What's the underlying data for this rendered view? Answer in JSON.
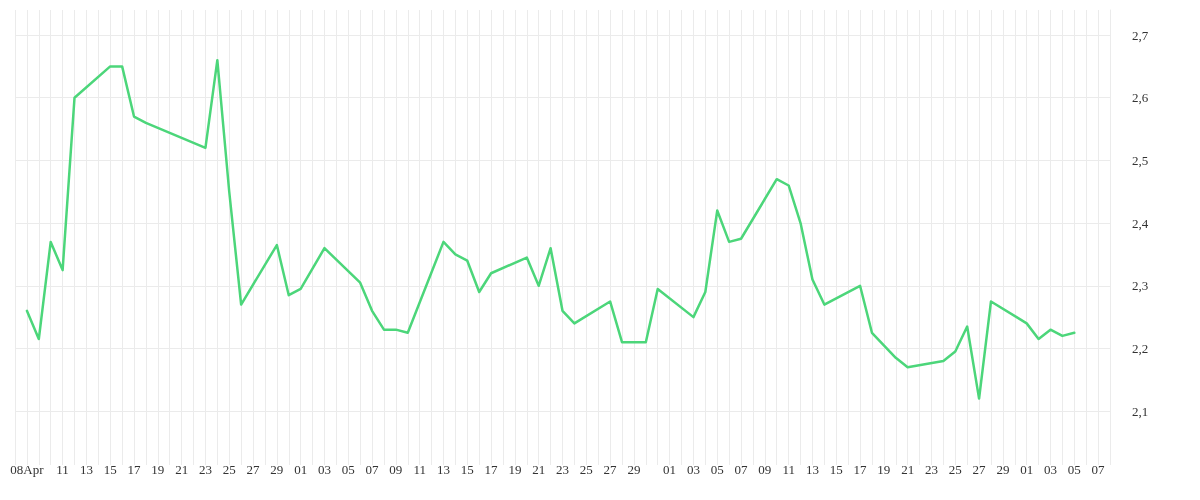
{
  "chart_data": {
    "type": "line",
    "x": [
      "--04-08",
      "--04-09",
      "--04-10",
      "--04-11",
      "--04-12",
      "--04-15",
      "--04-16",
      "--04-17",
      "--04-18",
      "--04-23",
      "--04-24",
      "--04-25",
      "--04-26",
      "--04-29",
      "--04-30",
      "--05-01",
      "--05-03",
      "--05-06",
      "--05-07",
      "--05-08",
      "--05-09",
      "--05-10",
      "--05-13",
      "--05-14",
      "--05-15",
      "--05-16",
      "--05-17",
      "--05-20",
      "--05-21",
      "--05-22",
      "--05-23",
      "--05-24",
      "--05-27",
      "--05-28",
      "--05-30",
      "--05-31",
      "--06-03",
      "--06-04",
      "--06-05",
      "--06-06",
      "--06-07",
      "--06-10",
      "--06-11",
      "--06-12",
      "--06-13",
      "--06-14",
      "--06-17",
      "--06-18",
      "--06-19",
      "--06-20",
      "--06-21",
      "--06-24",
      "--06-25",
      "--06-26",
      "--06-27",
      "--06-28",
      "--07-01",
      "--07-02",
      "--07-03",
      "--07-04",
      "--07-05"
    ],
    "series": [
      {
        "color": "#4cd67a",
        "values": [
          2.26,
          2.215,
          2.37,
          2.325,
          2.6,
          2.65,
          2.65,
          2.57,
          2.56,
          2.52,
          2.66,
          2.45,
          2.27,
          2.365,
          2.285,
          2.295,
          2.36,
          2.305,
          2.26,
          2.23,
          2.23,
          2.225,
          2.37,
          2.35,
          2.34,
          2.29,
          2.32,
          2.345,
          2.3,
          2.36,
          2.26,
          2.24,
          2.275,
          2.21,
          2.21,
          2.295,
          2.25,
          2.29,
          2.42,
          2.37,
          2.375,
          2.47,
          2.46,
          2.4,
          2.31,
          2.27,
          2.3,
          2.225,
          2.205,
          2.185,
          2.17,
          2.18,
          2.195,
          2.235,
          2.12,
          2.275,
          2.24,
          2.215,
          2.23,
          2.22,
          2.225
        ]
      }
    ],
    "ylim": [
      2.03,
      2.74
    ],
    "yticks": [
      {
        "value": 2.1,
        "label": "2,1"
      },
      {
        "value": 2.2,
        "label": "2,2"
      },
      {
        "value": 2.3,
        "label": "2,3"
      },
      {
        "value": 2.4,
        "label": "2,4"
      },
      {
        "value": 2.5,
        "label": "2,5"
      },
      {
        "value": 2.6,
        "label": "2,6"
      },
      {
        "value": 2.7,
        "label": "2,7"
      }
    ],
    "xlim": [
      "--04-07",
      "--07-08"
    ],
    "xticks": [
      {
        "value": "--04-07",
        "label": null
      },
      {
        "value": "--04-08",
        "label": "08Apr"
      },
      {
        "value": "--04-09",
        "label": null
      },
      {
        "value": "--04-10",
        "label": null
      },
      {
        "value": "--04-11",
        "label": "11"
      },
      {
        "value": "--04-12",
        "label": null
      },
      {
        "value": "--04-13",
        "label": "13"
      },
      {
        "value": "--04-14",
        "label": null
      },
      {
        "value": "--04-15",
        "label": "15"
      },
      {
        "value": "--04-16",
        "label": null
      },
      {
        "value": "--04-17",
        "label": "17"
      },
      {
        "value": "--04-18",
        "label": null
      },
      {
        "value": "--04-19",
        "label": "19"
      },
      {
        "value": "--04-20",
        "label": null
      },
      {
        "value": "--04-21",
        "label": "21"
      },
      {
        "value": "--04-22",
        "label": null
      },
      {
        "value": "--04-23",
        "label": "23"
      },
      {
        "value": "--04-24",
        "label": null
      },
      {
        "value": "--04-25",
        "label": "25"
      },
      {
        "value": "--04-26",
        "label": null
      },
      {
        "value": "--04-27",
        "label": "27"
      },
      {
        "value": "--04-28",
        "label": null
      },
      {
        "value": "--04-29",
        "label": "29"
      },
      {
        "value": "--04-30",
        "label": null
      },
      {
        "value": "--05-01",
        "label": "01"
      },
      {
        "value": "--05-02",
        "label": null
      },
      {
        "value": "--05-03",
        "label": "03"
      },
      {
        "value": "--05-04",
        "label": null
      },
      {
        "value": "--05-05",
        "label": "05"
      },
      {
        "value": "--05-06",
        "label": null
      },
      {
        "value": "--05-07",
        "label": "07"
      },
      {
        "value": "--05-08",
        "label": null
      },
      {
        "value": "--05-09",
        "label": "09"
      },
      {
        "value": "--05-10",
        "label": null
      },
      {
        "value": "--05-11",
        "label": "11"
      },
      {
        "value": "--05-12",
        "label": null
      },
      {
        "value": "--05-13",
        "label": "13"
      },
      {
        "value": "--05-14",
        "label": null
      },
      {
        "value": "--05-15",
        "label": "15"
      },
      {
        "value": "--05-16",
        "label": null
      },
      {
        "value": "--05-17",
        "label": "17"
      },
      {
        "value": "--05-18",
        "label": null
      },
      {
        "value": "--05-19",
        "label": "19"
      },
      {
        "value": "--05-20",
        "label": null
      },
      {
        "value": "--05-21",
        "label": "21"
      },
      {
        "value": "--05-22",
        "label": null
      },
      {
        "value": "--05-23",
        "label": "23"
      },
      {
        "value": "--05-24",
        "label": null
      },
      {
        "value": "--05-25",
        "label": "25"
      },
      {
        "value": "--05-26",
        "label": null
      },
      {
        "value": "--05-27",
        "label": "27"
      },
      {
        "value": "--05-28",
        "label": null
      },
      {
        "value": "--05-29",
        "label": "29"
      },
      {
        "value": "--05-30",
        "label": null
      },
      {
        "value": "--05-31",
        "label": null
      },
      {
        "value": "--06-01",
        "label": "01"
      },
      {
        "value": "--06-02",
        "label": null
      },
      {
        "value": "--06-03",
        "label": "03"
      },
      {
        "value": "--06-04",
        "label": null
      },
      {
        "value": "--06-05",
        "label": "05"
      },
      {
        "value": "--06-06",
        "label": null
      },
      {
        "value": "--06-07",
        "label": "07"
      },
      {
        "value": "--06-08",
        "label": null
      },
      {
        "value": "--06-09",
        "label": "09"
      },
      {
        "value": "--06-10",
        "label": null
      },
      {
        "value": "--06-11",
        "label": "11"
      },
      {
        "value": "--06-12",
        "label": null
      },
      {
        "value": "--06-13",
        "label": "13"
      },
      {
        "value": "--06-14",
        "label": null
      },
      {
        "value": "--06-15",
        "label": "15"
      },
      {
        "value": "--06-16",
        "label": null
      },
      {
        "value": "--06-17",
        "label": "17"
      },
      {
        "value": "--06-18",
        "label": null
      },
      {
        "value": "--06-19",
        "label": "19"
      },
      {
        "value": "--06-20",
        "label": null
      },
      {
        "value": "--06-21",
        "label": "21"
      },
      {
        "value": "--06-22",
        "label": null
      },
      {
        "value": "--06-23",
        "label": "23"
      },
      {
        "value": "--06-24",
        "label": null
      },
      {
        "value": "--06-25",
        "label": "25"
      },
      {
        "value": "--06-26",
        "label": null
      },
      {
        "value": "--06-27",
        "label": "27"
      },
      {
        "value": "--06-28",
        "label": null
      },
      {
        "value": "--06-29",
        "label": "29"
      },
      {
        "value": "--06-30",
        "label": null
      },
      {
        "value": "--07-01",
        "label": "01"
      },
      {
        "value": "--07-02",
        "label": null
      },
      {
        "value": "--07-03",
        "label": "03"
      },
      {
        "value": "--07-04",
        "label": null
      },
      {
        "value": "--07-05",
        "label": "05"
      },
      {
        "value": "--07-06",
        "label": null
      },
      {
        "value": "--07-07",
        "label": "07"
      },
      {
        "value": "--07-08",
        "label": null
      }
    ],
    "grid": true,
    "marker": "none",
    "line_style": "solid"
  }
}
